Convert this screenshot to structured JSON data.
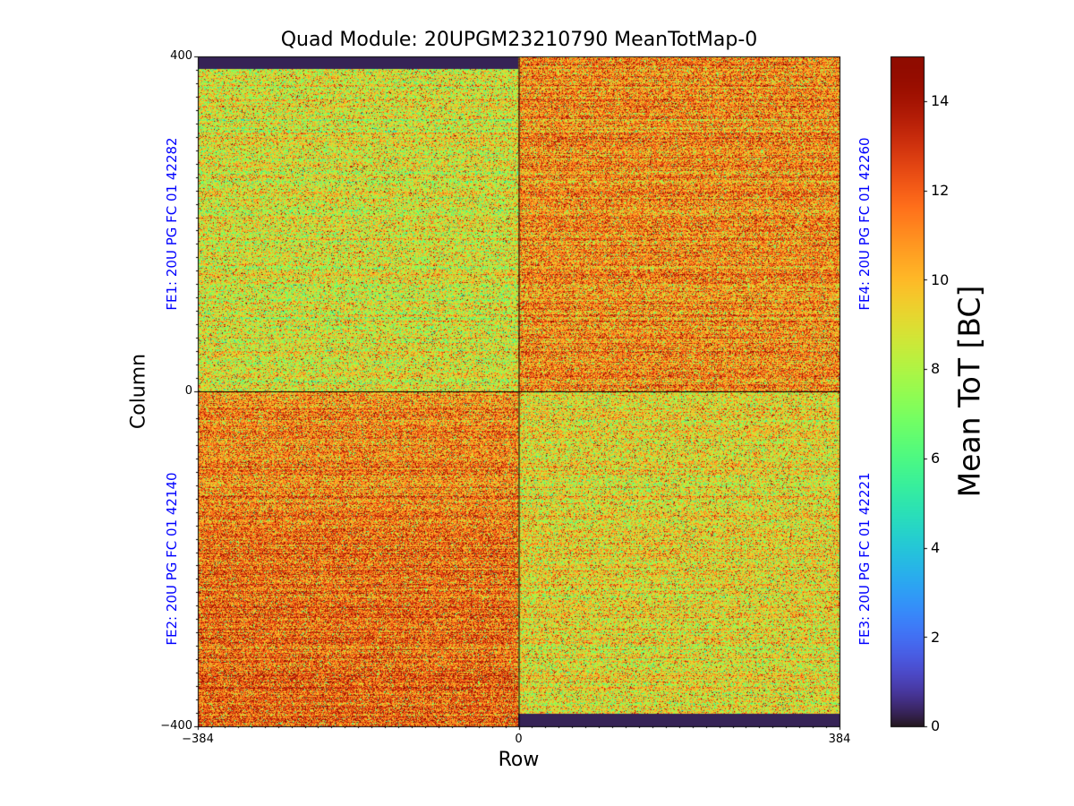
{
  "chart_data": {
    "type": "heatmap",
    "title": "Quad Module: 20UPGM23210790 MeanTotMap-0",
    "xlabel": "Row",
    "ylabel": "Column",
    "xlim": [
      -384,
      384
    ],
    "ylim": [
      -400,
      400
    ],
    "xticks": [
      "−384",
      "0",
      "384"
    ],
    "yticks": [
      "400",
      "0",
      "−400"
    ],
    "colorbar": {
      "label": "Mean ToT [BC]",
      "range": [
        0,
        15
      ],
      "ticks": [
        "0",
        "2",
        "4",
        "6",
        "8",
        "10",
        "12",
        "14"
      ],
      "colormap": "turbo"
    },
    "quadrants": [
      {
        "name": "FE1: 20U PG FC 01 42282",
        "x": [
          -384,
          0
        ],
        "y": [
          0,
          400
        ],
        "mean_tot": 8.8,
        "dead_rows_at_top": 15
      },
      {
        "name": "FE4: 20U PG FC 01 42260",
        "x": [
          0,
          384
        ],
        "y": [
          0,
          400
        ],
        "mean_tot": 11.0
      },
      {
        "name": "FE2: 20U PG FC 01 42140",
        "x": [
          -384,
          0
        ],
        "y": [
          -400,
          0
        ],
        "mean_tot": 11.3
      },
      {
        "name": "FE3: 20U PG FC 01 42221",
        "x": [
          0,
          384
        ],
        "y": [
          -400,
          0
        ],
        "mean_tot": 9.2,
        "dead_rows_at_bottom": 15
      }
    ]
  }
}
